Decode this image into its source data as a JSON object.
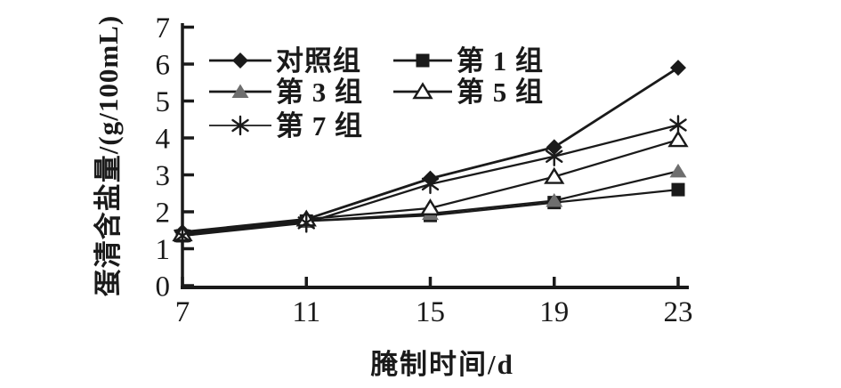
{
  "chart_data": {
    "type": "line",
    "title": "",
    "xlabel": "腌制时间/d",
    "ylabel": "蛋清含盐量/(g/100mL)",
    "x": [
      7,
      11,
      15,
      19,
      23
    ],
    "xtick_labels": [
      "7",
      "11",
      "15",
      "19",
      "23"
    ],
    "ytick_labels": [
      "0",
      "1",
      "2",
      "3",
      "4",
      "5",
      "6",
      "7"
    ],
    "yticks": [
      0,
      1,
      2,
      3,
      4,
      5,
      6,
      7
    ],
    "xlim": [
      7,
      23
    ],
    "ylim": [
      0,
      7
    ],
    "grid": false,
    "legend_position": "inside-top-left",
    "axis_color": "#1a1a1a",
    "line_color": "#1a1a1a",
    "series": [
      {
        "name": "对照组",
        "marker": "diamond",
        "color": "#1a1a1a",
        "values": [
          1.45,
          1.8,
          2.9,
          3.75,
          5.9
        ]
      },
      {
        "name": "第 1 组",
        "marker": "square",
        "color": "#1a1a1a",
        "values": [
          1.35,
          1.75,
          1.9,
          2.25,
          2.6
        ]
      },
      {
        "name": "第 3 组",
        "marker": "triangle-filled",
        "color": "#6e6e6e",
        "values": [
          1.4,
          1.75,
          1.95,
          2.3,
          3.1
        ]
      },
      {
        "name": "第 5 组",
        "marker": "triangle-open",
        "color": "#1a1a1a",
        "values": [
          1.4,
          1.8,
          2.1,
          2.95,
          3.95
        ]
      },
      {
        "name": "第 7 组",
        "marker": "asterisk",
        "color": "#1a1a1a",
        "values": [
          1.35,
          1.7,
          2.75,
          3.5,
          4.35
        ]
      }
    ]
  }
}
